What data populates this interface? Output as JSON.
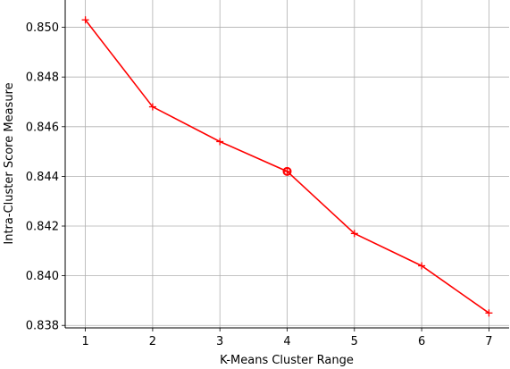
{
  "chart_data": {
    "type": "line",
    "title": "",
    "xlabel": "K-Means Cluster Range",
    "ylabel": "Intra-Cluster Score Measure",
    "x": [
      1,
      2,
      3,
      4,
      5,
      6,
      7
    ],
    "series": [
      {
        "values": [
          0.8503,
          0.8468,
          0.8454,
          0.8442,
          0.8417,
          0.8404,
          0.8385
        ],
        "color": "#ff0000",
        "marker": "plus"
      }
    ],
    "highlight": {
      "x": 4,
      "y": 0.8442,
      "marker": "circle"
    },
    "xticks": [
      "1",
      "2",
      "3",
      "4",
      "5",
      "6",
      "7"
    ],
    "yticks": [
      "0.838",
      "0.840",
      "0.842",
      "0.844",
      "0.846",
      "0.848",
      "0.850"
    ],
    "xlim": [
      0.7,
      7.3
    ],
    "ylim": [
      0.8379,
      0.8511
    ],
    "grid": true
  }
}
